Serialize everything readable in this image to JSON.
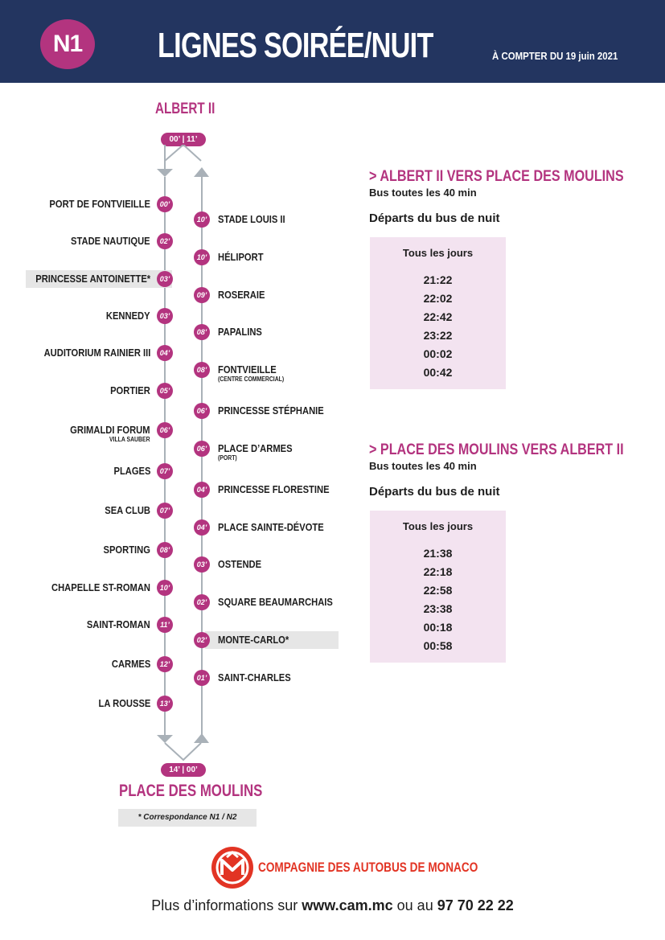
{
  "header": {
    "line_code": "N1",
    "title": "LIGNES SOIRÉE/NUIT",
    "effective_date": "À COMPTER DU 19 juin 2021"
  },
  "route": {
    "start_terminus": "ALBERT II",
    "start_times": "00’ | 11’",
    "end_terminus": "PLACE DES MOULINS",
    "end_times": "14’ | 00’",
    "outbound_stops": [
      {
        "name": "PORT DE FONTVIEILLE",
        "sub": "",
        "time": "00’",
        "highlight": false
      },
      {
        "name": "STADE NAUTIQUE",
        "sub": "",
        "time": "02’",
        "highlight": false
      },
      {
        "name": "PRINCESSE ANTOINETTE*",
        "sub": "",
        "time": "03’",
        "highlight": true
      },
      {
        "name": "KENNEDY",
        "sub": "",
        "time": "03’",
        "highlight": false
      },
      {
        "name": "AUDITORIUM RAINIER III",
        "sub": "",
        "time": "04’",
        "highlight": false
      },
      {
        "name": "PORTIER",
        "sub": "",
        "time": "05’",
        "highlight": false
      },
      {
        "name": "GRIMALDI FORUM",
        "sub": "VILLA SAUBER",
        "time": "06’",
        "highlight": false
      },
      {
        "name": "PLAGES",
        "sub": "",
        "time": "07’",
        "highlight": false
      },
      {
        "name": "SEA CLUB",
        "sub": "",
        "time": "07’",
        "highlight": false
      },
      {
        "name": "SPORTING",
        "sub": "",
        "time": "08’",
        "highlight": false
      },
      {
        "name": "CHAPELLE ST-ROMAN",
        "sub": "",
        "time": "10’",
        "highlight": false
      },
      {
        "name": "SAINT-ROMAN",
        "sub": "",
        "time": "11’",
        "highlight": false
      },
      {
        "name": "CARMES",
        "sub": "",
        "time": "12’",
        "highlight": false
      },
      {
        "name": "LA ROUSSE",
        "sub": "",
        "time": "13’",
        "highlight": false
      }
    ],
    "return_stops": [
      {
        "name": "STADE LOUIS II",
        "sub": "",
        "time": "10’",
        "highlight": false
      },
      {
        "name": "HÉLIPORT",
        "sub": "",
        "time": "10’",
        "highlight": false
      },
      {
        "name": "ROSERAIE",
        "sub": "",
        "time": "09’",
        "highlight": false
      },
      {
        "name": "PAPALINS",
        "sub": "",
        "time": "08’",
        "highlight": false
      },
      {
        "name": "FONTVIEILLE",
        "sub": "(CENTRE COMMERCIAL)",
        "time": "08’",
        "highlight": false
      },
      {
        "name": "PRINCESSE STÉPHANIE",
        "sub": "",
        "time": "06’",
        "highlight": false
      },
      {
        "name": "PLACE D’ARMES",
        "sub": "(PORT)",
        "time": "06’",
        "highlight": false
      },
      {
        "name": "PRINCESSE FLORESTINE",
        "sub": "",
        "time": "04’",
        "highlight": false
      },
      {
        "name": "PLACE SAINTE-DÉVOTE",
        "sub": "",
        "time": "04’",
        "highlight": false
      },
      {
        "name": "OSTENDE",
        "sub": "",
        "time": "03’",
        "highlight": false
      },
      {
        "name": "SQUARE BEAUMARCHAIS",
        "sub": "",
        "time": "02’",
        "highlight": false
      },
      {
        "name": "MONTE-CARLO*",
        "sub": "",
        "time": "02’",
        "highlight": true
      },
      {
        "name": "SAINT-CHARLES",
        "sub": "",
        "time": "01’",
        "highlight": false
      }
    ],
    "note": "* Correspondance N1 / N2"
  },
  "schedules": [
    {
      "title": "> ALBERT II VERS PLACE DES MOULINS",
      "frequency": "Bus toutes les 40 min",
      "departures_title": "Départs du bus de nuit",
      "table_header": "Tous les jours",
      "times": [
        "21:22",
        "22:02",
        "22:42",
        "23:22",
        "00:02",
        "00:42"
      ]
    },
    {
      "title": "> PLACE DES MOULINS VERS ALBERT II",
      "frequency": "Bus toutes les 40 min",
      "departures_title": "Départs du bus de nuit",
      "table_header": "Tous les jours",
      "times": [
        "21:38",
        "22:18",
        "22:58",
        "23:38",
        "00:18",
        "00:58"
      ]
    }
  ],
  "footer": {
    "company": "COMPAGNIE DES AUTOBUS DE MONACO",
    "info_prefix": "Plus d’informations sur ",
    "website": "www.cam.mc",
    "info_middle": " ou au ",
    "phone": "97 70 22 22"
  },
  "colors": {
    "navy": "#233560",
    "magenta": "#b3347f",
    "red": "#e23424",
    "table_bg": "#f3e3f0"
  }
}
